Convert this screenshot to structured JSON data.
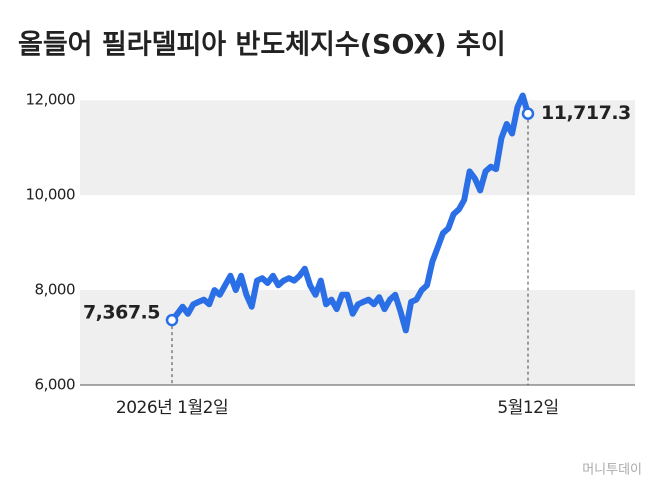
{
  "chart_data": {
    "type": "line",
    "title": "올들어 필라델피아 반도체지수(SOX) 추이",
    "categories": [
      "2026년 1월2일",
      null,
      null,
      null,
      null,
      null,
      null,
      null,
      null,
      null,
      null,
      null,
      null,
      null,
      null,
      null,
      null,
      null,
      null,
      null,
      null,
      null,
      null,
      null,
      null,
      null,
      null,
      null,
      null,
      null,
      null,
      null,
      null,
      null,
      null,
      null,
      null,
      null,
      null,
      null,
      null,
      null,
      null,
      null,
      null,
      null,
      null,
      null,
      null,
      null,
      null,
      null,
      null,
      null,
      null,
      null,
      null,
      null,
      null,
      null,
      null,
      null,
      null,
      null,
      null,
      null,
      null,
      "5월12일"
    ],
    "values": [
      7367.5,
      7500,
      7650,
      7500,
      7700,
      7750,
      7800,
      7700,
      8000,
      7900,
      8100,
      8300,
      8000,
      8300,
      7900,
      7650,
      8200,
      8250,
      8150,
      8300,
      8100,
      8200,
      8250,
      8200,
      8300,
      8450,
      8100,
      7900,
      8200,
      7700,
      7800,
      7600,
      7900,
      7900,
      7500,
      7700,
      7750,
      7800,
      7700,
      7850,
      7600,
      7800,
      7900,
      7550,
      7150,
      7750,
      7800,
      8000,
      8100,
      8600,
      8900,
      9200,
      9300,
      9600,
      9700,
      9900,
      10500,
      10350,
      10100,
      10500,
      10600,
      10550,
      11200,
      11500,
      11300,
      11850,
      12100,
      11717.3
    ],
    "value_labels": [
      "7,367.5",
      null,
      null,
      null,
      null,
      null,
      null,
      null,
      null,
      null,
      null,
      null,
      null,
      null,
      null,
      null,
      null,
      null,
      null,
      null,
      null,
      null,
      null,
      null,
      null,
      null,
      null,
      null,
      null,
      null,
      null,
      null,
      null,
      null,
      null,
      null,
      null,
      null,
      null,
      null,
      null,
      null,
      null,
      null,
      null,
      null,
      null,
      null,
      null,
      null,
      null,
      null,
      null,
      null,
      null,
      null,
      null,
      null,
      null,
      null,
      null,
      null,
      null,
      null,
      null,
      null,
      null,
      "11,717.3"
    ],
    "color": "#2b6fe6",
    "ylim": [
      6000,
      12300
    ],
    "yticks": [
      {
        "value": 6000,
        "label": "6,000"
      },
      {
        "value": 8000,
        "label": "8,000"
      },
      {
        "value": 10000,
        "label": "10,000"
      },
      {
        "value": 12000,
        "label": "12,000"
      }
    ],
    "grid": "bands",
    "source": "머니투데이"
  }
}
